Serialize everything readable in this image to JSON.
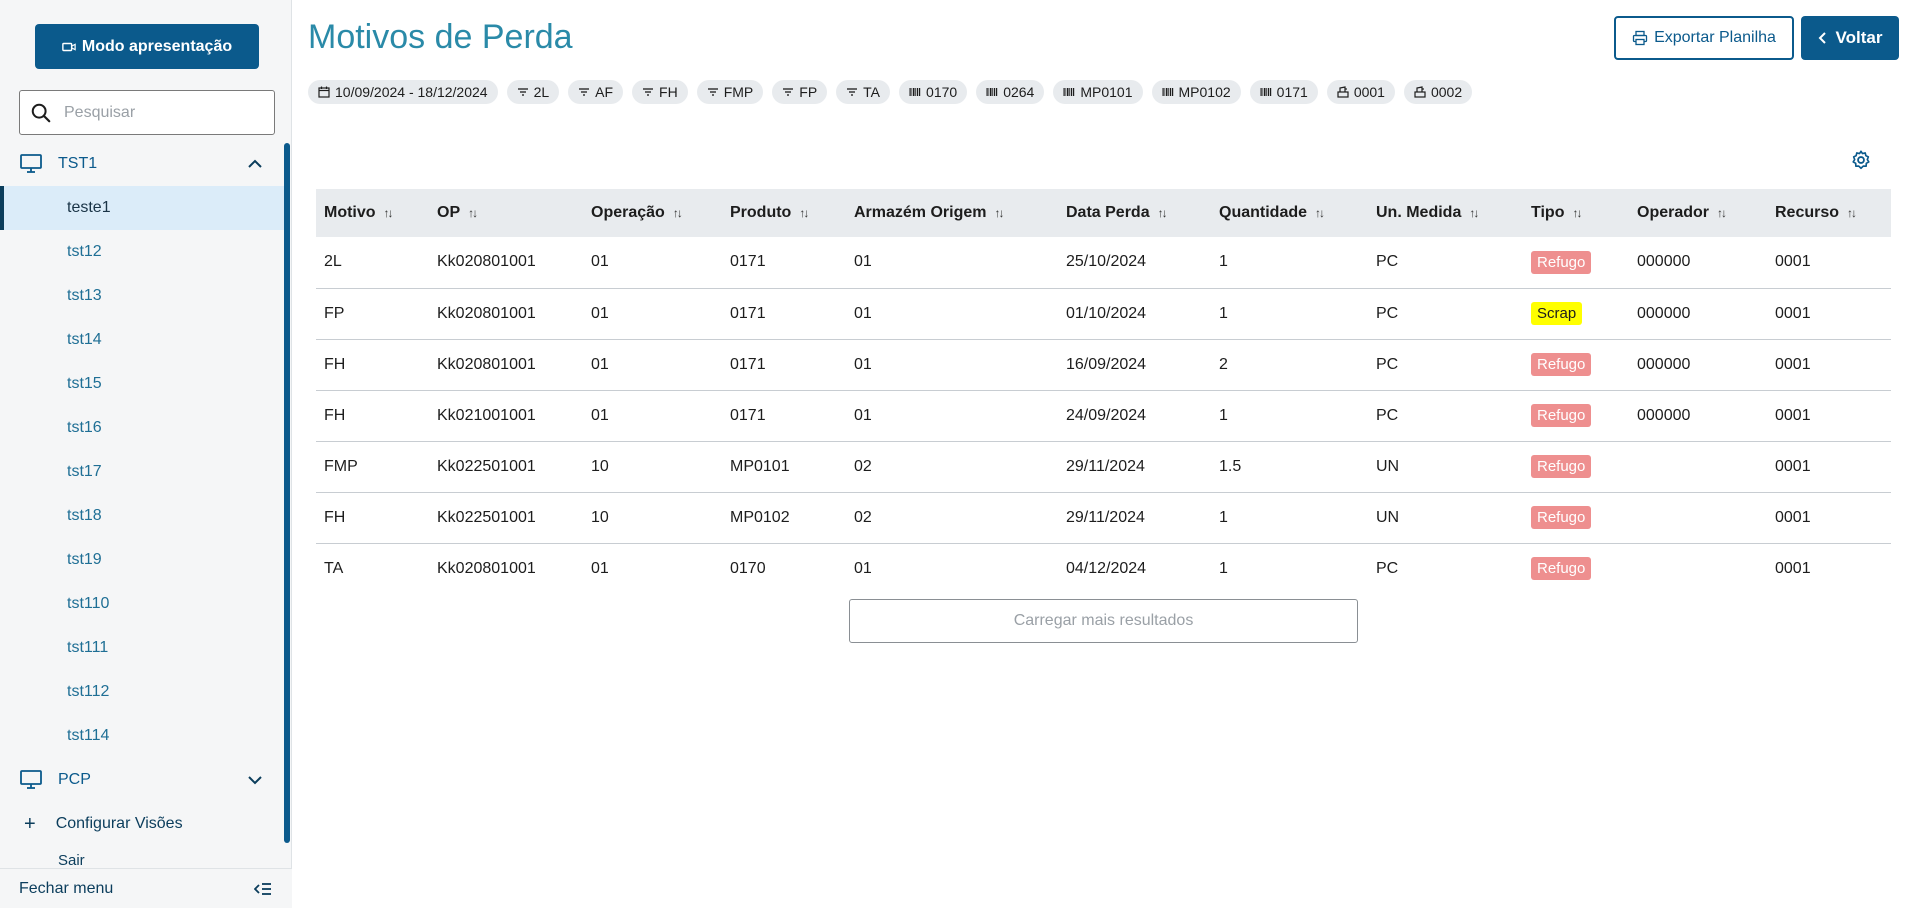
{
  "sidebar": {
    "present_label": "Modo apresentação",
    "search_placeholder": "Pesquisar",
    "group1": {
      "label": "TST1",
      "items": [
        "teste1",
        "tst12",
        "tst13",
        "tst14",
        "tst15",
        "tst16",
        "tst17",
        "tst18",
        "tst19",
        "tst110",
        "tst111",
        "tst112",
        "tst114"
      ]
    },
    "group2": {
      "label": "PCP"
    },
    "config_label": "Configurar Visões",
    "sair_label": "Sair",
    "footer_label": "Fechar menu"
  },
  "header": {
    "title": "Motivos de Perda",
    "export_label": "Exportar Planilha",
    "back_label": "Voltar"
  },
  "chips": [
    {
      "icon": "calendar-icon",
      "label": "10/09/2024 - 18/12/2024"
    },
    {
      "icon": "filter-icon",
      "label": "2L"
    },
    {
      "icon": "filter-icon",
      "label": "AF"
    },
    {
      "icon": "filter-icon",
      "label": "FH"
    },
    {
      "icon": "filter-icon",
      "label": "FMP"
    },
    {
      "icon": "filter-icon",
      "label": "FP"
    },
    {
      "icon": "filter-icon",
      "label": "TA"
    },
    {
      "icon": "barcode-icon",
      "label": "0170"
    },
    {
      "icon": "barcode-icon",
      "label": "0264"
    },
    {
      "icon": "barcode-icon",
      "label": "MP0101"
    },
    {
      "icon": "barcode-icon",
      "label": "MP0102"
    },
    {
      "icon": "barcode-icon",
      "label": "0171"
    },
    {
      "icon": "machine-icon",
      "label": "0001"
    },
    {
      "icon": "machine-icon",
      "label": "0002"
    }
  ],
  "table": {
    "columns": [
      "Motivo",
      "OP",
      "Operação",
      "Produto",
      "Armazém Origem",
      "Data Perda",
      "Quantidade",
      "Un. Medida",
      "Tipo",
      "Operador",
      "Recurso"
    ],
    "rows": [
      [
        "2L",
        "Kk020801001",
        "01",
        "0171",
        "01",
        "25/10/2024",
        "1",
        "PC",
        "Refugo",
        "000000",
        "0001"
      ],
      [
        "FP",
        "Kk020801001",
        "01",
        "0171",
        "01",
        "01/10/2024",
        "1",
        "PC",
        "Scrap",
        "000000",
        "0001"
      ],
      [
        "FH",
        "Kk020801001",
        "01",
        "0171",
        "01",
        "16/09/2024",
        "2",
        "PC",
        "Refugo",
        "000000",
        "0001"
      ],
      [
        "FH",
        "Kk021001001",
        "01",
        "0171",
        "01",
        "24/09/2024",
        "1",
        "PC",
        "Refugo",
        "000000",
        "0001"
      ],
      [
        "FMP",
        "Kk022501001",
        "10",
        "MP0101",
        "02",
        "29/11/2024",
        "1.5",
        "UN",
        "Refugo",
        "",
        "0001"
      ],
      [
        "FH",
        "Kk022501001",
        "10",
        "MP0102",
        "02",
        "29/11/2024",
        "1",
        "UN",
        "Refugo",
        "",
        "0001"
      ],
      [
        "TA",
        "Kk020801001",
        "01",
        "0170",
        "01",
        "04/12/2024",
        "1",
        "PC",
        "Refugo",
        "",
        "0001"
      ]
    ]
  },
  "load_more_label": "Carregar mais resultados",
  "colors": {
    "primary": "#0b5a8c",
    "title": "#2a8aa8",
    "refugo": "#ee8f8f",
    "scrap": "#ffff00"
  }
}
